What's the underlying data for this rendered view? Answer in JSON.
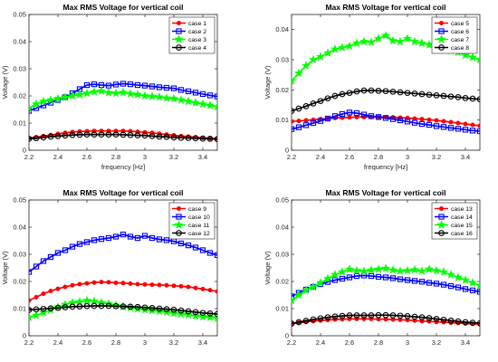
{
  "chart_data": [
    {
      "type": "line",
      "title": "Max RMS Voltage for vertical coil",
      "xlabel": "frequency [Hz]",
      "ylabel": "Voltage (V)",
      "xlim": [
        2.2,
        3.5
      ],
      "ylim": [
        0,
        0.05
      ],
      "xticks": [
        2.2,
        2.4,
        2.6,
        2.8,
        3,
        3.2,
        3.4
      ],
      "xtick_labels": [
        "2.2",
        "2.4",
        "2.6",
        "2.8",
        "3",
        "3.2",
        "3.4"
      ],
      "yticks": [
        0,
        0.01,
        0.02,
        0.03,
        0.04,
        0.05
      ],
      "ytick_labels": [
        "0",
        "0.01",
        "0.02",
        "0.03",
        "0.04",
        "0.05"
      ],
      "grid": false,
      "legend": "top-right",
      "x": [
        2.2,
        2.25,
        2.3,
        2.35,
        2.4,
        2.45,
        2.5,
        2.55,
        2.6,
        2.65,
        2.7,
        2.75,
        2.8,
        2.85,
        2.9,
        2.95,
        3.0,
        3.05,
        3.1,
        3.15,
        3.2,
        3.25,
        3.3,
        3.35,
        3.4,
        3.45,
        3.5
      ],
      "series": [
        {
          "name": "case 1",
          "color": "#ff0000",
          "marker": "dot",
          "values": [
            0.0045,
            0.0048,
            0.0052,
            0.0056,
            0.006,
            0.0064,
            0.0067,
            0.0069,
            0.007,
            0.0071,
            0.0071,
            0.0071,
            0.0071,
            0.0071,
            0.007,
            0.0068,
            0.0066,
            0.0064,
            0.0061,
            0.0058,
            0.0055,
            0.0052,
            0.005,
            0.0048,
            0.0046,
            0.0044,
            0.0043
          ]
        },
        {
          "name": "case 2",
          "color": "#0000ff",
          "marker": "square",
          "values": [
            0.0145,
            0.0155,
            0.0165,
            0.0175,
            0.0185,
            0.0195,
            0.021,
            0.0225,
            0.024,
            0.0243,
            0.024,
            0.0238,
            0.0242,
            0.0245,
            0.0243,
            0.024,
            0.0238,
            0.0235,
            0.0232,
            0.023,
            0.0228,
            0.0222,
            0.0217,
            0.0212,
            0.0207,
            0.0202,
            0.0198
          ]
        },
        {
          "name": "case 3",
          "color": "#00ff00",
          "marker": "star",
          "values": [
            0.0155,
            0.017,
            0.018,
            0.0185,
            0.019,
            0.0195,
            0.02,
            0.0205,
            0.021,
            0.0215,
            0.0218,
            0.0212,
            0.021,
            0.0213,
            0.0208,
            0.0205,
            0.02,
            0.0198,
            0.0196,
            0.0192,
            0.019,
            0.0185,
            0.018,
            0.0175,
            0.017,
            0.0165,
            0.016
          ]
        },
        {
          "name": "case 4",
          "color": "#000000",
          "marker": "circle",
          "values": [
            0.0042,
            0.0044,
            0.0047,
            0.005,
            0.0052,
            0.0054,
            0.0056,
            0.0057,
            0.0058,
            0.0058,
            0.0058,
            0.0058,
            0.0058,
            0.0057,
            0.0056,
            0.0055,
            0.0054,
            0.0052,
            0.005,
            0.0049,
            0.0047,
            0.0046,
            0.0045,
            0.0044,
            0.0043,
            0.0042,
            0.0041
          ]
        }
      ]
    },
    {
      "type": "line",
      "title": "Max RMS Voltage for vertical coil",
      "xlabel": "frequency [Hz]",
      "ylabel": "Voltage (V)",
      "xlim": [
        2.2,
        3.5
      ],
      "ylim": [
        0,
        0.045
      ],
      "xticks": [
        2.2,
        2.4,
        2.6,
        2.8,
        3,
        3.2,
        3.4
      ],
      "xtick_labels": [
        "2.2",
        "2.4",
        "2.6",
        "2.8",
        "3",
        "3.2",
        "3.4"
      ],
      "yticks": [
        0,
        0.01,
        0.02,
        0.03,
        0.04
      ],
      "ytick_labels": [
        "0",
        "0.01",
        "0.02",
        "0.03",
        "0.04"
      ],
      "grid": false,
      "legend": "top-right",
      "x": [
        2.2,
        2.25,
        2.3,
        2.35,
        2.4,
        2.45,
        2.5,
        2.55,
        2.6,
        2.65,
        2.7,
        2.75,
        2.8,
        2.85,
        2.9,
        2.95,
        3.0,
        3.05,
        3.1,
        3.15,
        3.2,
        3.25,
        3.3,
        3.35,
        3.4,
        3.45,
        3.5
      ],
      "series": [
        {
          "name": "case 5",
          "color": "#ff0000",
          "marker": "dot",
          "values": [
            0.0095,
            0.0097,
            0.0099,
            0.0101,
            0.0103,
            0.0105,
            0.0107,
            0.0108,
            0.0109,
            0.011,
            0.011,
            0.011,
            0.011,
            0.011,
            0.0109,
            0.0108,
            0.0107,
            0.0105,
            0.0103,
            0.0101,
            0.0099,
            0.0096,
            0.0093,
            0.009,
            0.0087,
            0.0084,
            0.0081
          ]
        },
        {
          "name": "case 6",
          "color": "#0000ff",
          "marker": "square",
          "values": [
            0.007,
            0.0076,
            0.0083,
            0.009,
            0.0097,
            0.0105,
            0.0113,
            0.012,
            0.0125,
            0.0123,
            0.0118,
            0.0113,
            0.011,
            0.0107,
            0.0103,
            0.0099,
            0.0095,
            0.0091,
            0.0087,
            0.0084,
            0.008,
            0.0077,
            0.0074,
            0.0071,
            0.0068,
            0.0065,
            0.0063
          ]
        },
        {
          "name": "case 7",
          "color": "#00ff00",
          "marker": "star",
          "values": [
            0.023,
            0.0255,
            0.028,
            0.03,
            0.031,
            0.0322,
            0.0335,
            0.034,
            0.0345,
            0.0355,
            0.036,
            0.0358,
            0.037,
            0.038,
            0.0363,
            0.036,
            0.037,
            0.036,
            0.0355,
            0.035,
            0.0352,
            0.034,
            0.033,
            0.0325,
            0.0315,
            0.0308,
            0.03
          ]
        },
        {
          "name": "case 8",
          "color": "#000000",
          "marker": "circle",
          "values": [
            0.013,
            0.0138,
            0.0146,
            0.0155,
            0.0163,
            0.0172,
            0.018,
            0.0186,
            0.019,
            0.0195,
            0.0198,
            0.0198,
            0.0197,
            0.0196,
            0.0194,
            0.0192,
            0.019,
            0.0188,
            0.0186,
            0.0184,
            0.0182,
            0.018,
            0.0178,
            0.0176,
            0.0173,
            0.0171,
            0.0169
          ]
        }
      ]
    },
    {
      "type": "line",
      "title": "Max RMS Voltage for vertical coil",
      "xlabel": "",
      "ylabel": "Voltage (V)",
      "xlim": [
        2.2,
        3.5
      ],
      "ylim": [
        0,
        0.05
      ],
      "xticks": [
        2.2,
        2.4,
        2.6,
        2.8,
        3,
        3.2,
        3.4
      ],
      "xtick_labels": [
        "2.2",
        "2.4",
        "2.6",
        "2.8",
        "3",
        "3.2",
        "3.4"
      ],
      "yticks": [
        0,
        0.01,
        0.02,
        0.03,
        0.04,
        0.05
      ],
      "ytick_labels": [
        "0",
        "0.01",
        "0.02",
        "0.03",
        "0.04",
        "0.05"
      ],
      "grid": false,
      "legend": "top-right",
      "x": [
        2.2,
        2.25,
        2.3,
        2.35,
        2.4,
        2.45,
        2.5,
        2.55,
        2.6,
        2.65,
        2.7,
        2.75,
        2.8,
        2.85,
        2.9,
        2.95,
        3.0,
        3.05,
        3.1,
        3.15,
        3.2,
        3.25,
        3.3,
        3.35,
        3.4,
        3.45,
        3.5
      ],
      "series": [
        {
          "name": "case 9",
          "color": "#ff0000",
          "marker": "dot",
          "values": [
            0.013,
            0.0142,
            0.0155,
            0.0165,
            0.0173,
            0.018,
            0.0186,
            0.019,
            0.0193,
            0.0196,
            0.0198,
            0.0197,
            0.0195,
            0.0194,
            0.0192,
            0.019,
            0.0189,
            0.0188,
            0.0187,
            0.0186,
            0.0184,
            0.0182,
            0.018,
            0.0176,
            0.0172,
            0.0168,
            0.0163
          ]
        },
        {
          "name": "case 10",
          "color": "#0000ff",
          "marker": "square",
          "values": [
            0.0235,
            0.0255,
            0.0275,
            0.029,
            0.0305,
            0.0315,
            0.0328,
            0.0338,
            0.0345,
            0.0352,
            0.0356,
            0.036,
            0.0365,
            0.0373,
            0.0365,
            0.036,
            0.0368,
            0.036,
            0.0355,
            0.0352,
            0.0348,
            0.034,
            0.0333,
            0.0325,
            0.0315,
            0.0305,
            0.0297
          ]
        },
        {
          "name": "case 11",
          "color": "#00ff00",
          "marker": "star",
          "values": [
            0.0068,
            0.0075,
            0.0085,
            0.0095,
            0.0105,
            0.0115,
            0.0122,
            0.0125,
            0.013,
            0.0127,
            0.0122,
            0.0117,
            0.0112,
            0.0107,
            0.0103,
            0.0099,
            0.0096,
            0.0093,
            0.009,
            0.0087,
            0.0083,
            0.008,
            0.0077,
            0.0073,
            0.007,
            0.0068,
            0.0065
          ]
        },
        {
          "name": "case 12",
          "color": "#000000",
          "marker": "circle",
          "values": [
            0.0095,
            0.0097,
            0.0099,
            0.0101,
            0.0103,
            0.0105,
            0.0107,
            0.0108,
            0.0109,
            0.011,
            0.011,
            0.011,
            0.0109,
            0.0108,
            0.0107,
            0.0106,
            0.0104,
            0.0102,
            0.01,
            0.0098,
            0.0096,
            0.0093,
            0.009,
            0.0087,
            0.0084,
            0.0082,
            0.008
          ]
        }
      ]
    },
    {
      "type": "line",
      "title": "Max RMS Voltage for vertical coil",
      "xlabel": "",
      "ylabel": "Voltage (V)",
      "xlim": [
        2.2,
        3.5
      ],
      "ylim": [
        0,
        0.05
      ],
      "xticks": [
        2.2,
        2.4,
        2.6,
        2.8,
        3,
        3.2,
        3.4
      ],
      "xtick_labels": [
        "2.2",
        "2.4",
        "2.6",
        "2.8",
        "3",
        "3.2",
        "3.4"
      ],
      "yticks": [
        0,
        0.01,
        0.02,
        0.03,
        0.04,
        0.05
      ],
      "ytick_labels": [
        "0",
        "0.01",
        "0.02",
        "0.03",
        "0.04",
        "0.05"
      ],
      "grid": false,
      "legend": "top-right",
      "x": [
        2.2,
        2.25,
        2.3,
        2.35,
        2.4,
        2.45,
        2.5,
        2.55,
        2.6,
        2.65,
        2.7,
        2.75,
        2.8,
        2.85,
        2.9,
        2.95,
        3.0,
        3.05,
        3.1,
        3.15,
        3.2,
        3.25,
        3.3,
        3.35,
        3.4,
        3.45,
        3.5
      ],
      "series": [
        {
          "name": "case 13",
          "color": "#ff0000",
          "marker": "dot",
          "values": [
            0.0045,
            0.0048,
            0.0051,
            0.0054,
            0.0056,
            0.0058,
            0.006,
            0.0061,
            0.0062,
            0.0062,
            0.0062,
            0.0062,
            0.0061,
            0.0061,
            0.006,
            0.0059,
            0.0058,
            0.0056,
            0.0054,
            0.0053,
            0.0051,
            0.005,
            0.0048,
            0.0047,
            0.0045,
            0.0044,
            0.0043
          ]
        },
        {
          "name": "case 14",
          "color": "#0000ff",
          "marker": "square",
          "values": [
            0.0145,
            0.0158,
            0.017,
            0.018,
            0.019,
            0.0198,
            0.0205,
            0.021,
            0.0215,
            0.022,
            0.0222,
            0.022,
            0.0217,
            0.0215,
            0.0212,
            0.0208,
            0.0205,
            0.0202,
            0.0199,
            0.0195,
            0.0192,
            0.0188,
            0.0183,
            0.0178,
            0.0172,
            0.0167,
            0.0162
          ]
        },
        {
          "name": "case 15",
          "color": "#00ff00",
          "marker": "star",
          "values": [
            0.013,
            0.015,
            0.0168,
            0.018,
            0.0195,
            0.021,
            0.0225,
            0.0235,
            0.0245,
            0.024,
            0.0238,
            0.0242,
            0.0245,
            0.0248,
            0.0242,
            0.0238,
            0.024,
            0.0243,
            0.0238,
            0.0245,
            0.024,
            0.0235,
            0.0225,
            0.0215,
            0.0205,
            0.0195,
            0.0185
          ]
        },
        {
          "name": "case 16",
          "color": "#000000",
          "marker": "circle",
          "values": [
            0.0045,
            0.005,
            0.0055,
            0.006,
            0.0064,
            0.0068,
            0.0071,
            0.0073,
            0.0075,
            0.0075,
            0.0075,
            0.0075,
            0.0076,
            0.0076,
            0.0075,
            0.0074,
            0.0072,
            0.007,
            0.0068,
            0.0065,
            0.0062,
            0.0059,
            0.0056,
            0.0053,
            0.005,
            0.0048,
            0.0046
          ]
        }
      ]
    }
  ]
}
